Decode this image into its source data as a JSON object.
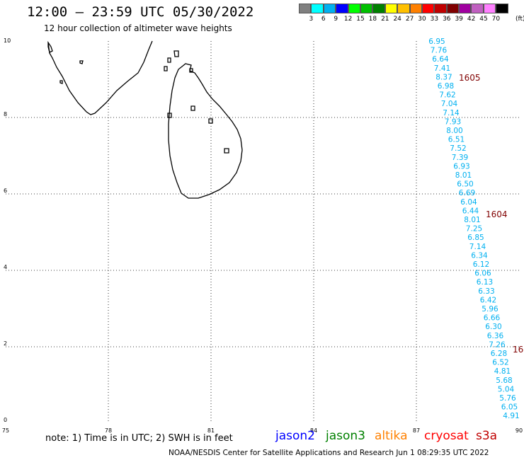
{
  "header": {
    "title": "12:00 – 23:59 UTC 05/30/2022",
    "subtitle": "12 hour collection of altimeter wave heights"
  },
  "legend": {
    "unit": "(ft)",
    "colors": [
      "#808080",
      "#00ffff",
      "#00b0f0",
      "#0000ff",
      "#00ff00",
      "#00c000",
      "#008000",
      "#ffff00",
      "#ffc000",
      "#ff8000",
      "#ff0000",
      "#c00000",
      "#800000",
      "#a000a0",
      "#c060c0",
      "#ff80ff",
      "#000000"
    ],
    "labels": [
      "3",
      "6",
      "9",
      "12",
      "15",
      "18",
      "21",
      "24",
      "27",
      "30",
      "33",
      "36",
      "39",
      "42",
      "45",
      "70"
    ]
  },
  "axes": {
    "x_ticks": [
      "75",
      "78",
      "81",
      "84",
      "87",
      "90"
    ],
    "y_ticks": [
      "0",
      "2",
      "4",
      "6",
      "8",
      "10"
    ]
  },
  "track_labels": [
    "1605",
    "1604",
    "16"
  ],
  "wave_heights": [
    "6.95",
    "7.76",
    "6.64",
    "7.41",
    "8.37",
    "6.98",
    "7.62",
    "7.04",
    "7.14",
    "7.93",
    "8.00",
    "6.51",
    "7.52",
    "7.39",
    "6.93",
    "8.01",
    "6.50",
    "6.69",
    "6.04",
    "6.44",
    "8.01",
    "7.25",
    "6.85",
    "7.14",
    "6.34",
    "6.12",
    "6.06",
    "6.13",
    "6.33",
    "6.42",
    "5.96",
    "6.66",
    "6.30",
    "6.36",
    "7.26",
    "6.28",
    "6.52",
    "4.81",
    "5.68",
    "5.04",
    "5.76",
    "6.05",
    "4.91"
  ],
  "note": "note: 1) Time is in UTC; 2) SWH is in feet",
  "satellites": [
    {
      "name": "jason2",
      "color": "#0000ff"
    },
    {
      "name": "jason3",
      "color": "#008000"
    },
    {
      "name": "altika",
      "color": "#ff8000"
    },
    {
      "name": "cryosat",
      "color": "#ff0000"
    },
    {
      "name": "s3a",
      "color": "#c00000"
    }
  ],
  "footer": "NOAA/NESDIS Center for Satellite Applications and Research   Jun  1 08:29:35 UTC 2022"
}
